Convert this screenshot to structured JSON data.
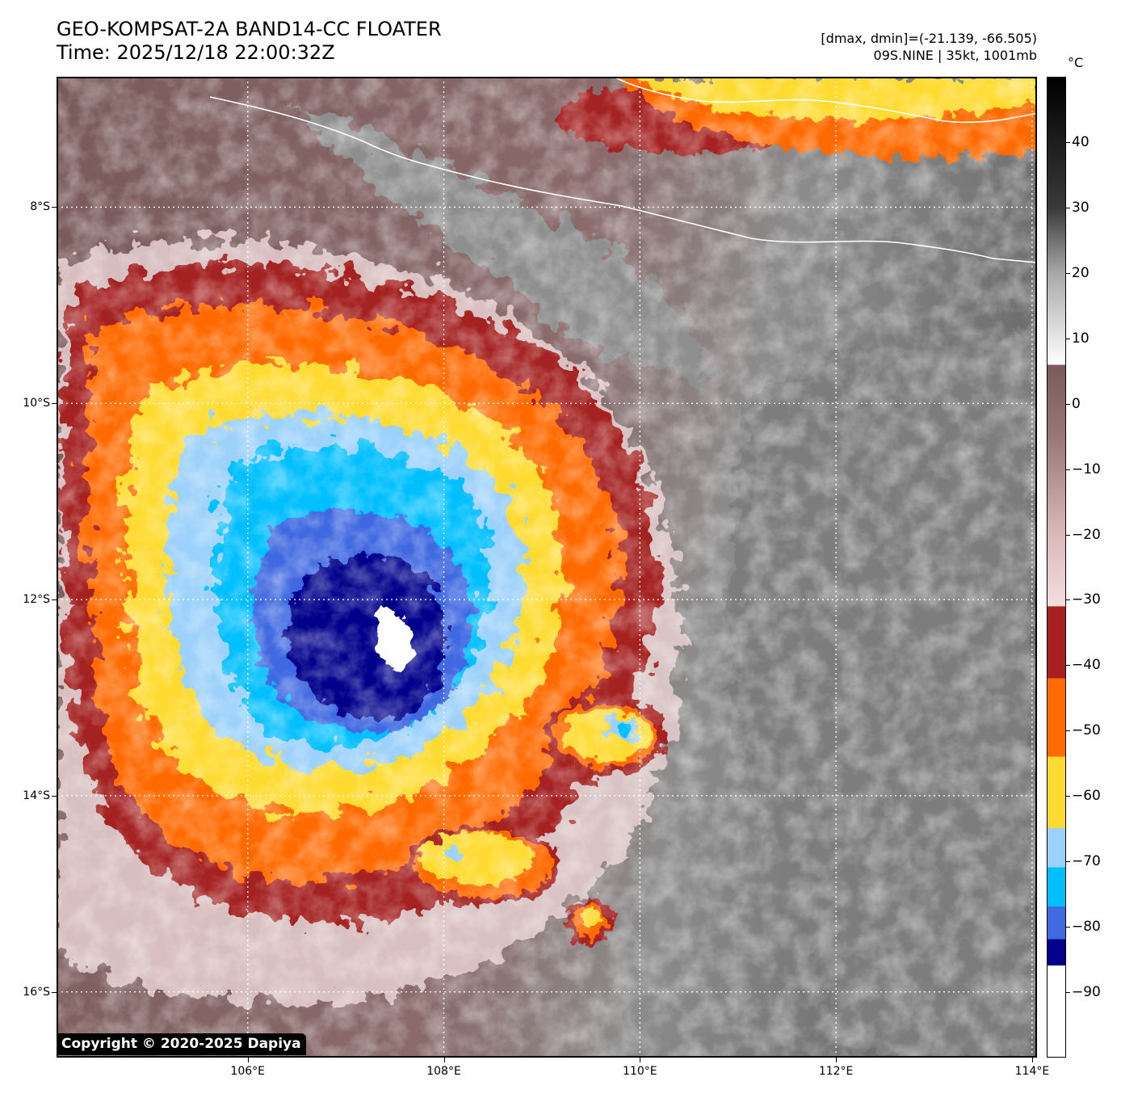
{
  "header": {
    "title_line1": "GEO-KOMPSAT-2A BAND14-CC FLOATER",
    "title_line2": "Time: 2025/12/18 22:00:32Z",
    "stats": "[dmax, dmin]=(-21.139, -66.505)",
    "storm": "09S.NINE | 35kt, 1001mb"
  },
  "map": {
    "lat_labels": [
      "8°S",
      "10°S",
      "12°S",
      "14°S",
      "16°S"
    ],
    "lon_labels": [
      "106°E",
      "108°E",
      "110°E",
      "112°E",
      "114°E"
    ],
    "lat_range": [
      -6.67,
      -16.67
    ],
    "lon_range": [
      104.05,
      114.05
    ],
    "lat_gridlines": [
      -8,
      -10,
      -12,
      -14,
      -16
    ],
    "lon_gridlines": [
      106,
      108,
      110,
      112,
      114
    ],
    "grid": true,
    "storm_center": {
      "lon": 107.6,
      "lat": -12.4
    },
    "copyright": "Copyright © 2020-2025 Dapiya"
  },
  "colorbar": {
    "unit": "°C",
    "labels": [
      "40",
      "30",
      "20",
      "10",
      "0",
      "−10",
      "−20",
      "−30",
      "−40",
      "−50",
      "−60",
      "−70",
      "−80",
      "−90"
    ],
    "range": [
      -100,
      50
    ],
    "stops": [
      {
        "value": -100,
        "color": "#ffffff"
      },
      {
        "value": -86,
        "color": "#ffffff"
      },
      {
        "value": -86,
        "color": "#00008b"
      },
      {
        "value": -82,
        "color": "#00008b"
      },
      {
        "value": -82,
        "color": "#4169e1"
      },
      {
        "value": -77,
        "color": "#4169e1"
      },
      {
        "value": -77,
        "color": "#00bfff"
      },
      {
        "value": -71,
        "color": "#00bfff"
      },
      {
        "value": -71,
        "color": "#9cd1fb"
      },
      {
        "value": -65,
        "color": "#9cd1fb"
      },
      {
        "value": -65,
        "color": "#ffdb32"
      },
      {
        "value": -54,
        "color": "#ffdb32"
      },
      {
        "value": -54,
        "color": "#ff6b00"
      },
      {
        "value": -42,
        "color": "#ff6b00"
      },
      {
        "value": -42,
        "color": "#a52020"
      },
      {
        "value": -31,
        "color": "#a52020"
      },
      {
        "value": -31,
        "color": "#f5dedf"
      },
      {
        "value": -20,
        "color": "#dcb8b9"
      },
      {
        "value": -5,
        "color": "#9b7676"
      },
      {
        "value": 6,
        "color": "#7a5a5a"
      },
      {
        "value": 6,
        "color": "#ffffff"
      },
      {
        "value": 20,
        "color": "#a8a8a8"
      },
      {
        "value": 30,
        "color": "#3a3a3a"
      },
      {
        "value": 50,
        "color": "#000000"
      }
    ]
  }
}
